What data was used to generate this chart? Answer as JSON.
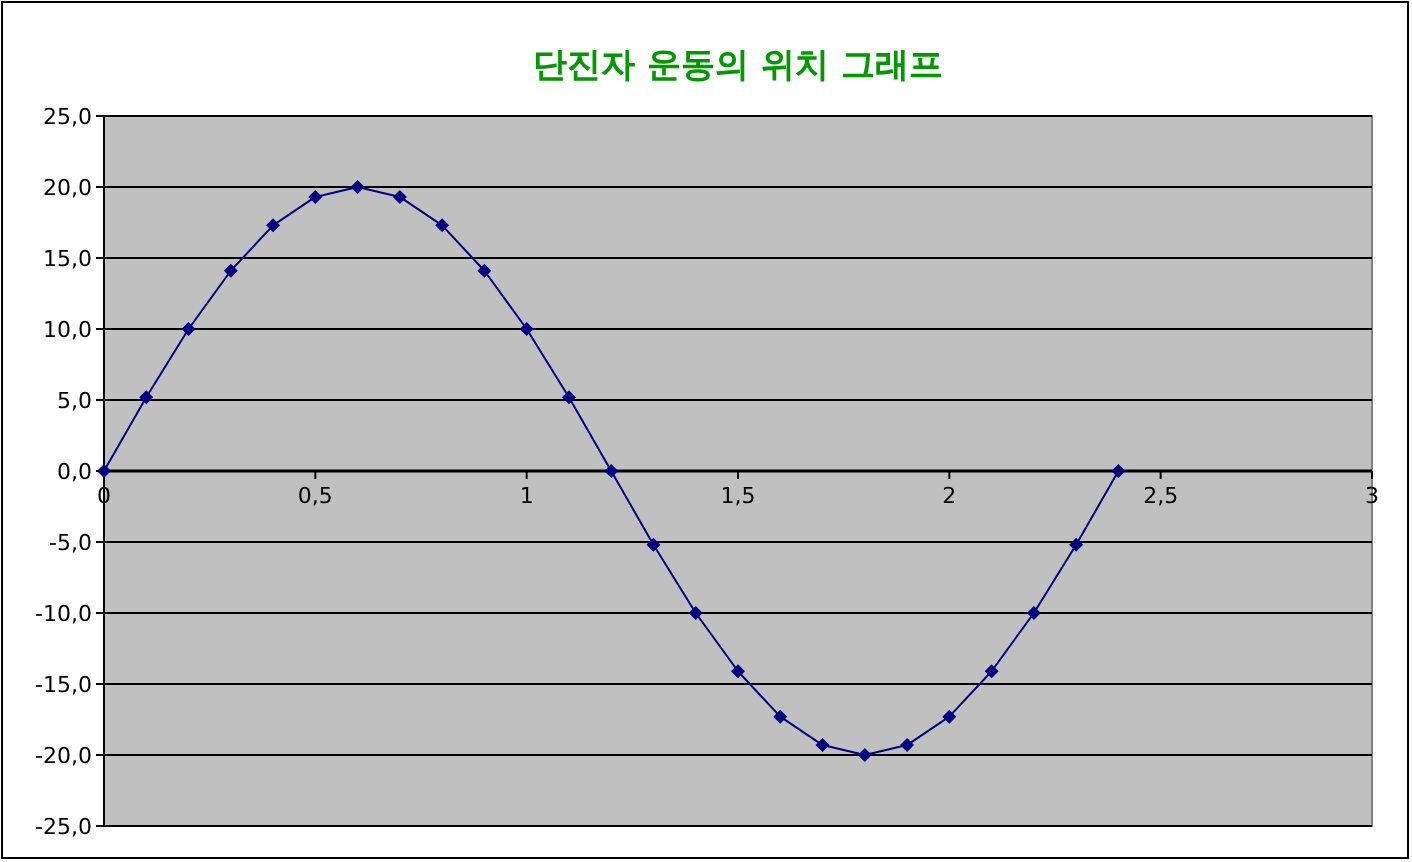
{
  "chart_data": {
    "type": "line",
    "title": "단진자 운동의 위치 그래프",
    "x": [
      0,
      0.1,
      0.2,
      0.3,
      0.4,
      0.5,
      0.6,
      0.7,
      0.8,
      0.9,
      1.0,
      1.1,
      1.2,
      1.3,
      1.4,
      1.5,
      1.6,
      1.7,
      1.8,
      1.9,
      2.0,
      2.1,
      2.2,
      2.3,
      2.4
    ],
    "series": [
      {
        "color": "#000080",
        "values": [
          0,
          5.2,
          10,
          14.1,
          17.3,
          19.3,
          20,
          19.3,
          17.3,
          14.1,
          10,
          5.2,
          0,
          -5.2,
          -10,
          -14.1,
          -17.3,
          -19.3,
          -20,
          -19.3,
          -17.3,
          -14.1,
          -10,
          -5.2,
          0
        ]
      }
    ],
    "xlim": [
      0,
      3
    ],
    "xticks": [
      0,
      {
        "value": 0.5,
        "label": "0,5"
      },
      1,
      {
        "value": 1.5,
        "label": "1,5"
      },
      2,
      {
        "value": 2.5,
        "label": "2,5"
      },
      3
    ],
    "ylim": [
      -25,
      25
    ],
    "yticks": [
      {
        "value": -25,
        "label": "-25,0"
      },
      {
        "value": -20,
        "label": "-20,0"
      },
      {
        "value": -15,
        "label": "-15,0"
      },
      {
        "value": -10,
        "label": "-10,0"
      },
      {
        "value": -5,
        "label": "-5,0"
      },
      {
        "value": 0,
        "label": "0,0"
      },
      {
        "value": 5,
        "label": "5,0"
      },
      {
        "value": 10,
        "label": "10,0"
      },
      {
        "value": 15,
        "label": "15,0"
      },
      {
        "value": 20,
        "label": "20,0"
      },
      {
        "value": 25,
        "label": "25,0"
      }
    ],
    "grid": "y",
    "marker": "diamond",
    "line_style": "solid"
  }
}
